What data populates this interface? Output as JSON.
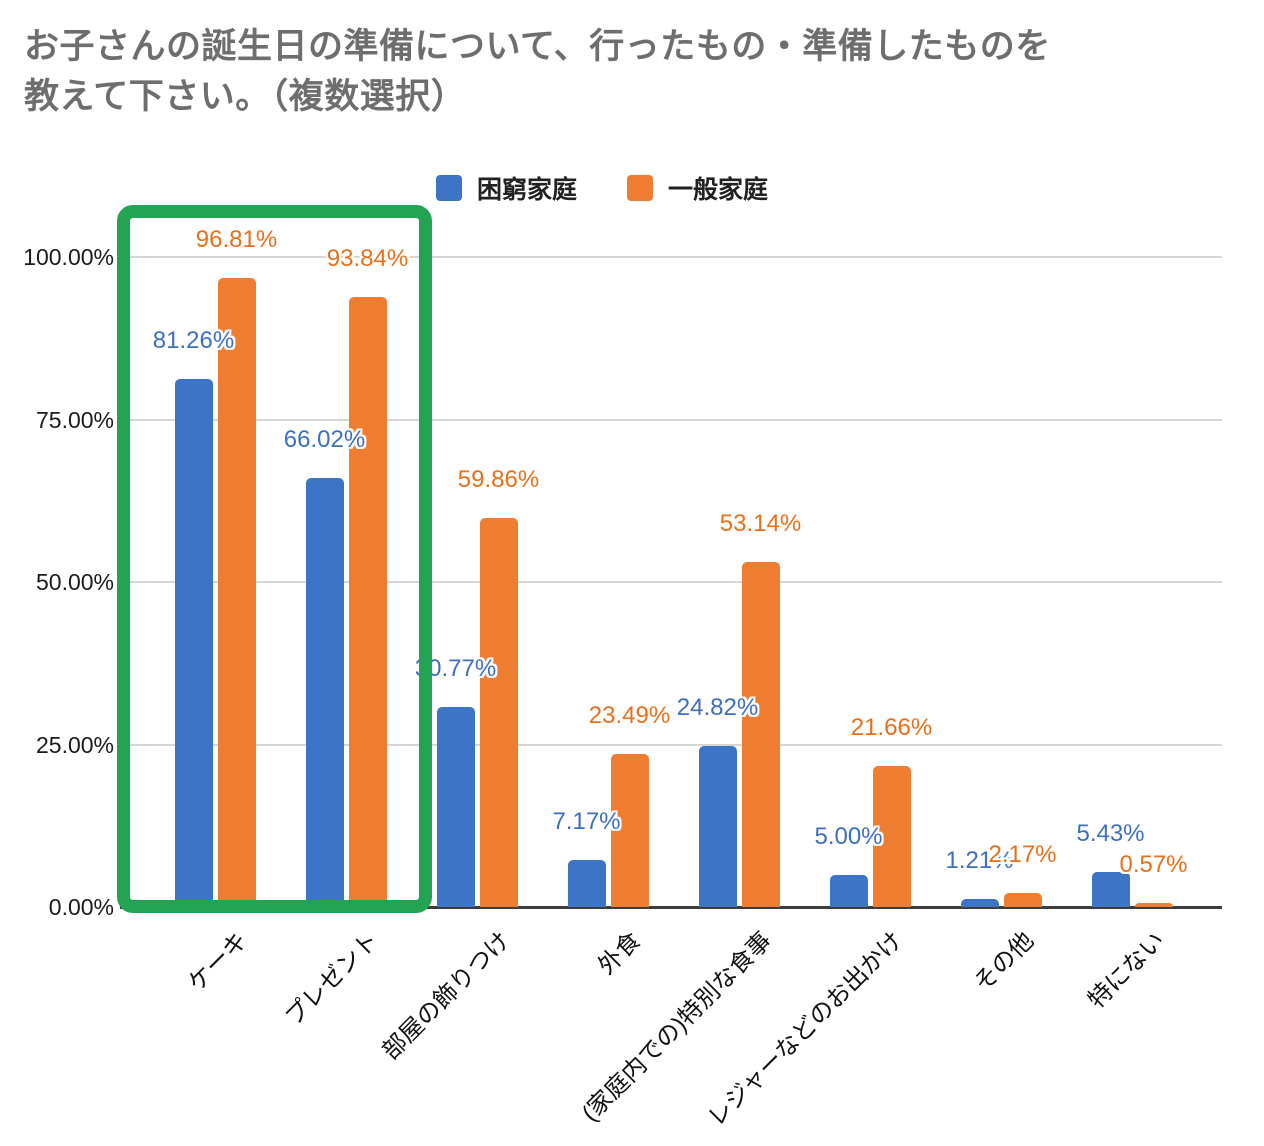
{
  "title": {
    "line1": "お子さんの誕生日の準備について、行ったもの・準備したものを",
    "line2": "教えて下さい。（複数選択）"
  },
  "legend": {
    "items": [
      {
        "label": "困窮家庭",
        "color": "#3E74C6"
      },
      {
        "label": "一般家庭",
        "color": "#EE7C31"
      }
    ]
  },
  "colors": {
    "series1_bar": "#3E74C6",
    "series1_label": "#3D6FC0",
    "series2_bar": "#EE7C31",
    "series2_label": "#E8701B",
    "highlight_box": "#23A455",
    "gridline": "#D6D6D6",
    "axis_line": "#3C3C3C",
    "title_text": "#6E6E6E"
  },
  "chart_data": {
    "type": "bar",
    "title": "お子さんの誕生日の準備について、行ったもの・準備したものを教えて下さい。（複数選択）",
    "categories": [
      "ケーキ",
      "プレゼント",
      "部屋の飾りつけ",
      "外食",
      "(家庭内での)特別な食事",
      "レジャーなどのお出かけ",
      "その他",
      "特にない"
    ],
    "series": [
      {
        "name": "困窮家庭",
        "color": "#3E74C6",
        "values": [
          81.26,
          66.02,
          30.77,
          7.17,
          24.82,
          5.0,
          1.21,
          5.43
        ],
        "display_labels": [
          "81.26%",
          "66.02%",
          "30.77%",
          "7.17%",
          "24.82%",
          "5.00%",
          "1.21%",
          "5.43%"
        ]
      },
      {
        "name": "一般家庭",
        "color": "#EE7C31",
        "values": [
          96.81,
          93.84,
          59.86,
          23.49,
          53.14,
          21.66,
          2.17,
          0.57
        ],
        "display_labels": [
          "96.81%",
          "93.84%",
          "59.86%",
          "23.49%",
          "53.14%",
          "21.66%",
          "2.17%",
          "0.57%"
        ]
      }
    ],
    "y_axis": {
      "tick_values": [
        100,
        75,
        50,
        25,
        0
      ],
      "tick_labels": [
        "100.00%",
        "75.00%",
        "50.00%",
        "25.00%",
        "0.00%"
      ]
    },
    "ylim": [
      0,
      100
    ],
    "grid": true,
    "legend_position": "top",
    "annotation": "green rounded rectangle highlighting the first two categories (ケーキ, プレゼント)"
  }
}
